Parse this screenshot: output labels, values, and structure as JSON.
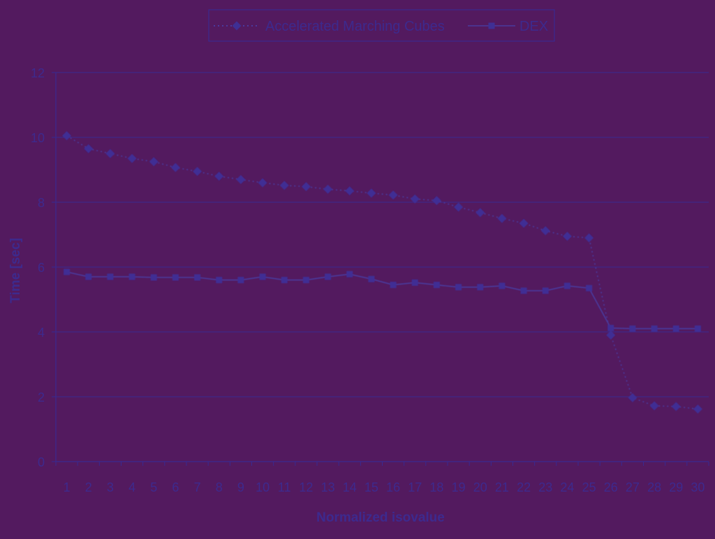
{
  "chart_data": {
    "type": "line",
    "xlabel": "Normalized isovalue",
    "ylabel": "Time [sec]",
    "ylim": [
      0,
      12
    ],
    "yticks": [
      0,
      2,
      4,
      6,
      8,
      10,
      12
    ],
    "grid": true,
    "legend_position": "top-center",
    "categories": [
      "1",
      "2",
      "3",
      "4",
      "5",
      "6",
      "7",
      "8",
      "9",
      "10",
      "11",
      "12",
      "13",
      "14",
      "15",
      "16",
      "17",
      "18",
      "19",
      "20",
      "21",
      "22",
      "23",
      "24",
      "25",
      "26",
      "27",
      "28",
      "29",
      "30"
    ],
    "series": [
      {
        "name": "Accelerated Marching Cubes",
        "style": "dotted",
        "marker": "diamond",
        "values": [
          10.05,
          9.65,
          9.5,
          9.35,
          9.25,
          9.07,
          8.95,
          8.8,
          8.7,
          8.6,
          8.52,
          8.48,
          8.4,
          8.35,
          8.28,
          8.22,
          8.1,
          8.05,
          7.85,
          7.68,
          7.5,
          7.35,
          7.12,
          6.95,
          6.9,
          3.9,
          1.97,
          1.72,
          1.7,
          1.62
        ]
      },
      {
        "name": "DEX",
        "style": "solid",
        "marker": "square",
        "values": [
          5.85,
          5.7,
          5.7,
          5.7,
          5.68,
          5.68,
          5.68,
          5.6,
          5.6,
          5.7,
          5.6,
          5.6,
          5.7,
          5.78,
          5.63,
          5.45,
          5.52,
          5.45,
          5.38,
          5.38,
          5.42,
          5.27,
          5.27,
          5.42,
          5.35,
          4.12,
          4.1,
          4.1,
          4.1,
          4.1
        ]
      }
    ],
    "colors": {
      "background": "#531a5f",
      "axis_text": "#3d2a8e",
      "gridline": "#3a2a90",
      "series_line": "#4a3a9e",
      "marker": "#3f2f94"
    }
  }
}
